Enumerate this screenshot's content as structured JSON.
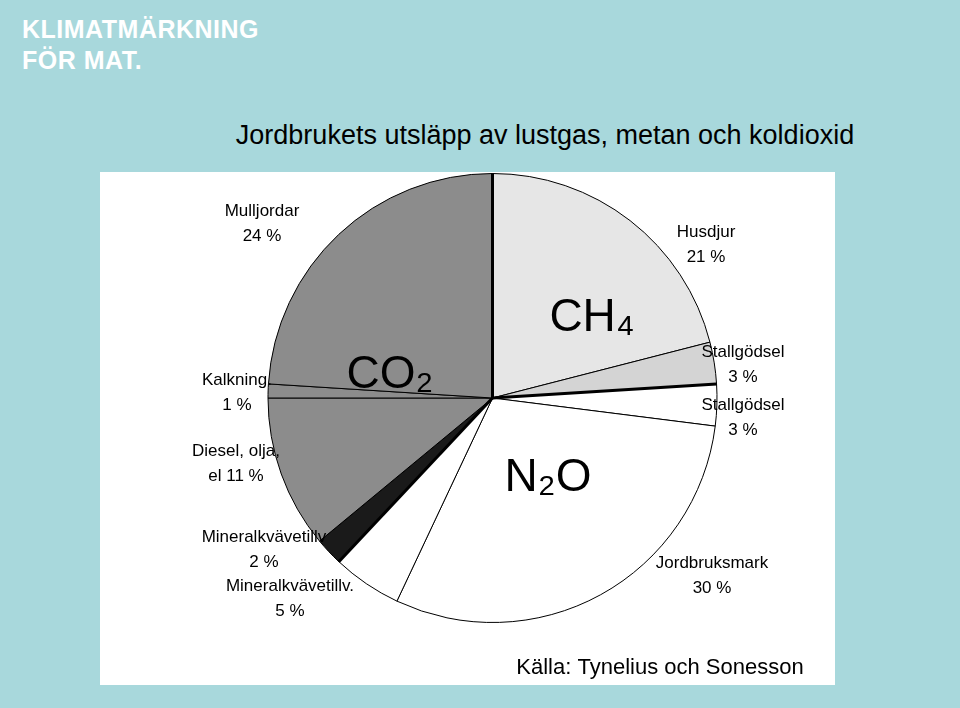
{
  "logo": [
    "KLIMATMÄRKNING",
    "FÖR MAT."
  ],
  "chart_data": {
    "type": "pie",
    "title": "Jordbrukets utsläpp av lustgas, metan och koldioxid",
    "source": "Källa: Tynelius och Sonesson",
    "categories": [
      "Husdjur",
      "Stallgödsel",
      "Stallgödsel",
      "Jordbruksmark",
      "Mineralkvävetillv.",
      "Mineralkvävetillv",
      "Diesel, olja, el",
      "Kalkning.",
      "Mulljordar"
    ],
    "values": [
      21,
      3,
      3,
      30,
      5,
      2,
      11,
      1,
      24
    ],
    "value_labels": [
      "21 %",
      "3 %",
      "3 %",
      "30 %",
      "5 %",
      "2 %",
      "11 %",
      "1 %",
      "24 %"
    ],
    "groups": [
      "CH₄",
      "CH₄",
      "N₂O",
      "N₂O",
      "N₂O",
      "CO₂",
      "CO₂",
      "CO₂",
      "CO₂"
    ],
    "colors": [
      "#e6e6e6",
      "#d4d4d4",
      "#ffffff",
      "#ffffff",
      "#ffffff",
      "#1a1a1a",
      "#8c8c8c",
      "#8c8c8c",
      "#8c8c8c"
    ],
    "data_labels": true
  }
}
